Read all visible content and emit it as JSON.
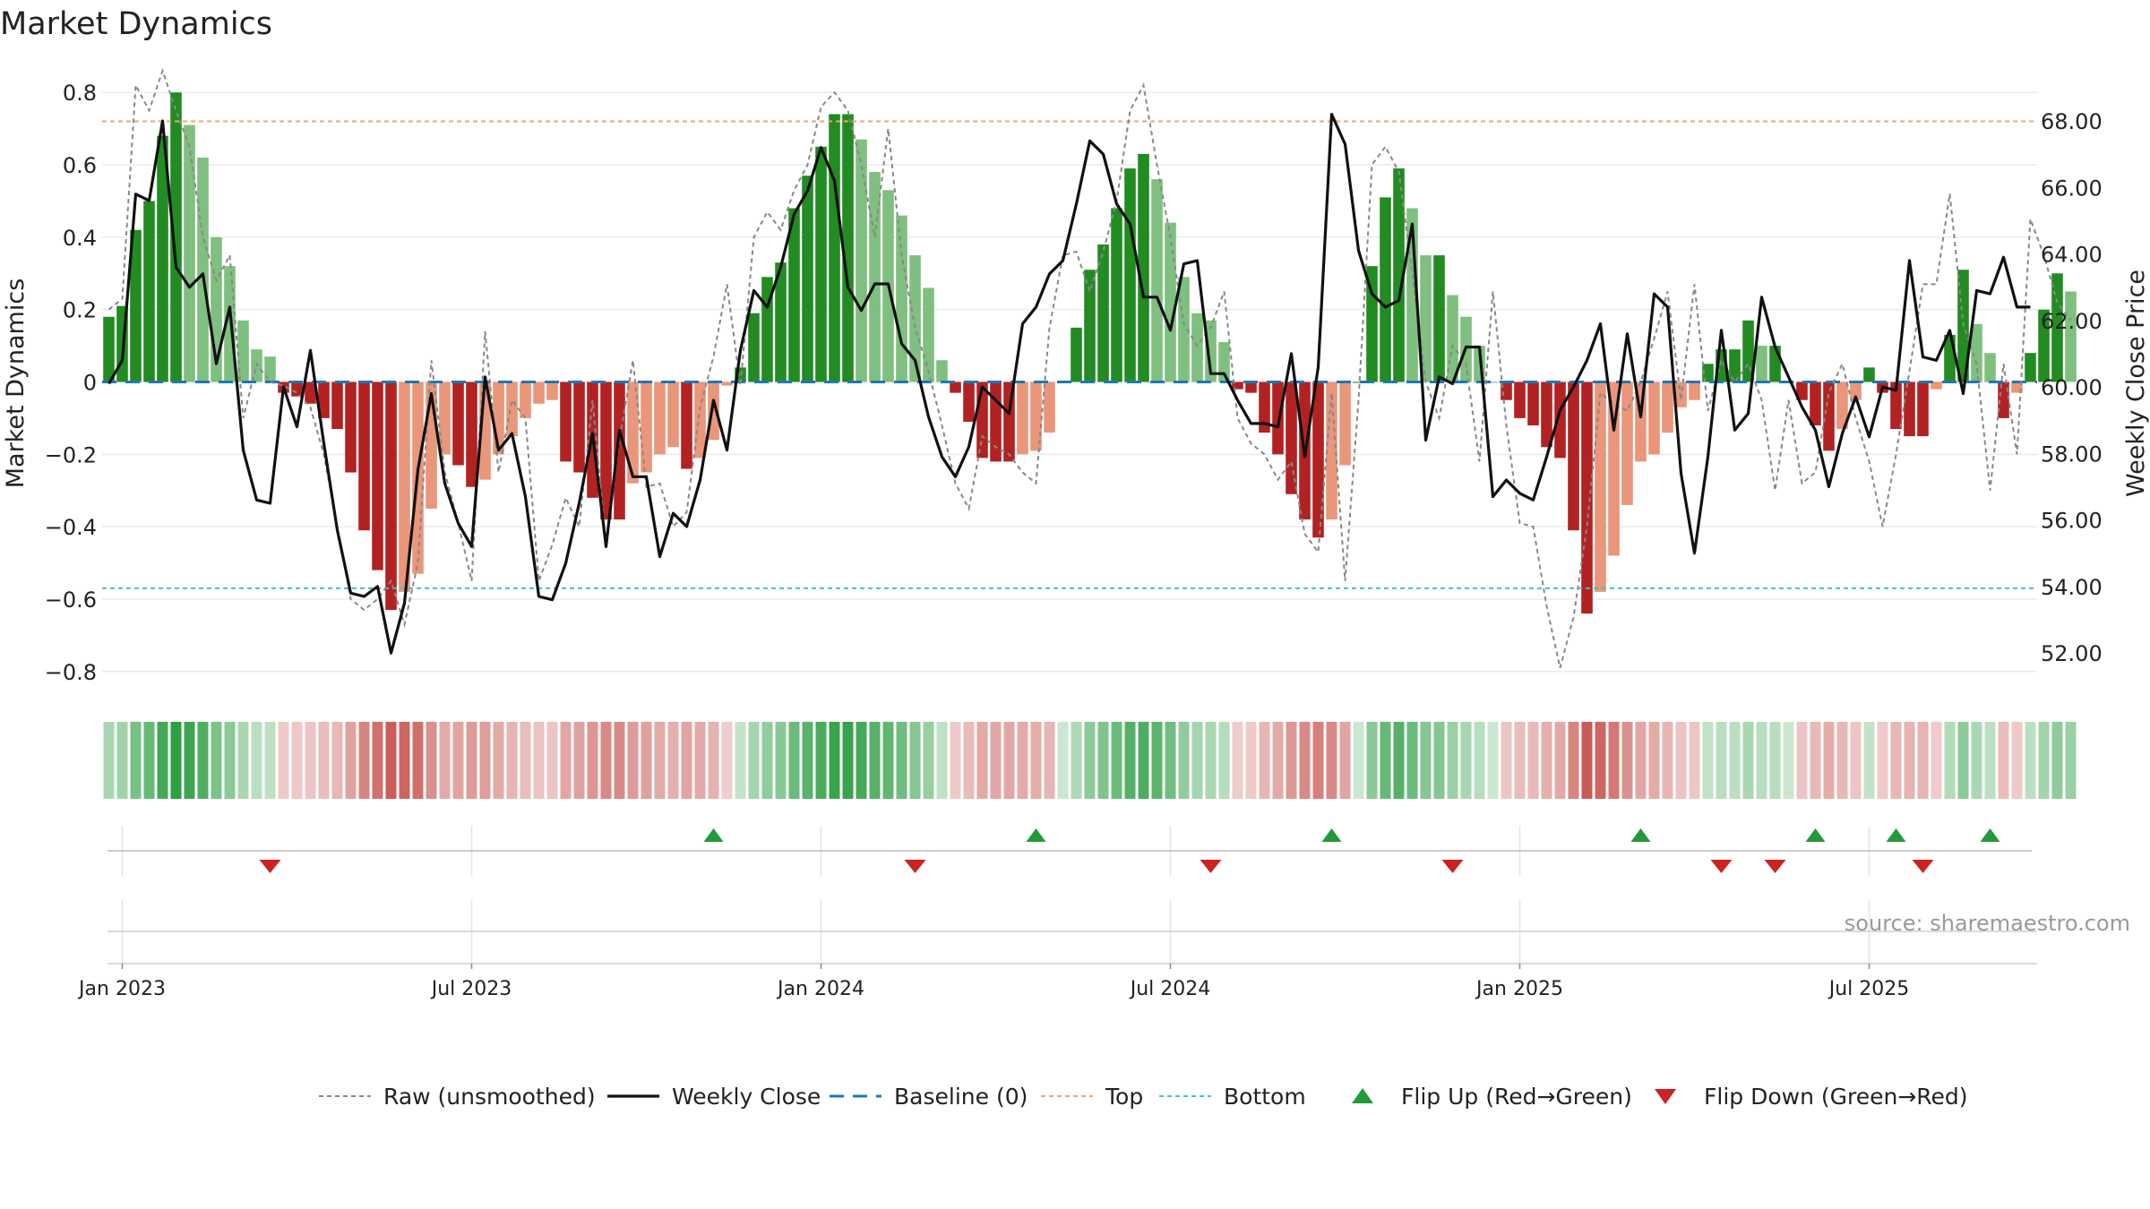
{
  "title": "Market Dynamics",
  "source": "source: sharemaestro.com",
  "colors": {
    "green_strong": "#228B22",
    "green_light": "#7FBF7F",
    "red_strong": "#B22222",
    "red_light": "#E9967A",
    "top_line": "#F4A460",
    "bottom_line": "#40C4C4",
    "baseline": "#1f77b4",
    "close_line": "#111111",
    "raw_line": "#888888",
    "flip_up": "#22993a",
    "flip_down": "#cc2222"
  },
  "legend": [
    {
      "key": "raw",
      "label": "Raw (unsmoothed)"
    },
    {
      "key": "close",
      "label": "Weekly Close"
    },
    {
      "key": "baseline",
      "label": "Baseline (0)"
    },
    {
      "key": "top",
      "label": "Top"
    },
    {
      "key": "bottom",
      "label": "Bottom"
    },
    {
      "key": "flip_up",
      "label": "Flip Up (Red→Green)"
    },
    {
      "key": "flip_down",
      "label": "Flip Down (Green→Red)"
    }
  ],
  "chart_data": {
    "type": "bar",
    "ylabel": "Market Dynamics",
    "y2label": "Weekly Close Price",
    "ylim": [
      -0.85,
      0.85
    ],
    "y2lim": [
      50.9,
      69.4
    ],
    "yticks": [
      {
        "v": 0.8,
        "label": "0.8"
      },
      {
        "v": 0.6,
        "label": "0.6"
      },
      {
        "v": 0.4,
        "label": "0.4"
      },
      {
        "v": 0.2,
        "label": "0.2"
      },
      {
        "v": 0,
        "label": "0"
      },
      {
        "v": -0.2,
        "label": "−0.2"
      },
      {
        "v": -0.4,
        "label": "−0.4"
      },
      {
        "v": -0.6,
        "label": "−0.6"
      },
      {
        "v": -0.8,
        "label": "−0.8"
      }
    ],
    "y2ticks": [
      {
        "v": 68,
        "label": "68.00"
      },
      {
        "v": 66,
        "label": "66.00"
      },
      {
        "v": 64,
        "label": "64.00"
      },
      {
        "v": 62,
        "label": "62.00"
      },
      {
        "v": 60,
        "label": "60.00"
      },
      {
        "v": 58,
        "label": "58.00"
      },
      {
        "v": 56,
        "label": "56.00"
      },
      {
        "v": 54,
        "label": "54.00"
      },
      {
        "v": 52,
        "label": "52.00"
      }
    ],
    "xticks": [
      {
        "week": 1,
        "label": "Jan 2023"
      },
      {
        "week": 27,
        "label": "Jul 2023"
      },
      {
        "week": 53,
        "label": "Jan 2024"
      },
      {
        "week": 79,
        "label": "Jul 2024"
      },
      {
        "week": 105,
        "label": "Jan 2025"
      },
      {
        "week": 131,
        "label": "Jul 2025"
      }
    ],
    "top_level": 0.72,
    "bottom_level": -0.57,
    "baseline": 0,
    "x_weeks_start": -0.5,
    "x_weeks_end": 143.5,
    "dynamics": [
      0.18,
      0.21,
      0.42,
      0.5,
      0.68,
      0.8,
      0.71,
      0.62,
      0.4,
      0.32,
      0.17,
      0.09,
      0.07,
      -0.03,
      -0.04,
      -0.06,
      -0.1,
      -0.13,
      -0.25,
      -0.41,
      -0.52,
      -0.63,
      -0.58,
      -0.53,
      -0.35,
      -0.2,
      -0.23,
      -0.29,
      -0.27,
      -0.2,
      -0.15,
      -0.1,
      -0.06,
      -0.05,
      -0.22,
      -0.25,
      -0.32,
      -0.38,
      -0.38,
      -0.28,
      -0.25,
      -0.2,
      -0.18,
      -0.24,
      -0.21,
      -0.16,
      -0.01,
      0.04,
      0.19,
      0.29,
      0.33,
      0.48,
      0.57,
      0.65,
      0.74,
      0.74,
      0.67,
      0.58,
      0.53,
      0.46,
      0.35,
      0.26,
      0.06,
      -0.03,
      -0.11,
      -0.21,
      -0.22,
      -0.22,
      -0.2,
      -0.19,
      -0.14,
      0.0,
      0.15,
      0.31,
      0.38,
      0.48,
      0.59,
      0.63,
      0.56,
      0.44,
      0.29,
      0.19,
      0.17,
      0.11,
      -0.02,
      -0.03,
      -0.14,
      -0.2,
      -0.31,
      -0.38,
      -0.43,
      -0.38,
      -0.23,
      0.0,
      0.32,
      0.51,
      0.59,
      0.48,
      0.35,
      0.35,
      0.24,
      0.18,
      0.1,
      0.0,
      -0.05,
      -0.1,
      -0.12,
      -0.18,
      -0.21,
      -0.41,
      -0.64,
      -0.58,
      -0.48,
      -0.34,
      -0.22,
      -0.2,
      -0.14,
      -0.07,
      -0.05,
      0.05,
      0.09,
      0.09,
      0.17,
      0.1,
      0.1,
      0.0,
      -0.05,
      -0.12,
      -0.19,
      -0.13,
      -0.05,
      0.04,
      -0.03,
      -0.13,
      -0.15,
      -0.15,
      -0.02,
      0.13,
      0.31,
      0.16,
      0.08,
      -0.1,
      -0.03,
      0.08,
      0.2,
      0.3,
      0.25
    ],
    "raw": [
      0.2,
      0.23,
      0.82,
      0.75,
      0.86,
      0.75,
      0.65,
      0.4,
      0.28,
      0.35,
      -0.1,
      0.05,
      0.0,
      -0.01,
      -0.03,
      -0.07,
      -0.2,
      -0.4,
      -0.6,
      -0.63,
      -0.6,
      -0.55,
      -0.67,
      -0.5,
      0.06,
      -0.25,
      -0.39,
      -0.55,
      0.14,
      -0.25,
      -0.05,
      -0.1,
      -0.55,
      -0.45,
      -0.32,
      -0.4,
      -0.05,
      -0.45,
      -0.16,
      0.06,
      -0.29,
      -0.28,
      -0.4,
      -0.36,
      -0.07,
      0.07,
      0.27,
      -0.01,
      0.4,
      0.47,
      0.42,
      0.53,
      0.6,
      0.76,
      0.8,
      0.75,
      0.6,
      0.4,
      0.7,
      0.35,
      0.15,
      0.03,
      -0.12,
      -0.28,
      -0.35,
      -0.15,
      -0.18,
      -0.2,
      -0.25,
      -0.28,
      0.15,
      0.35,
      0.36,
      0.25,
      0.36,
      0.5,
      0.75,
      0.82,
      0.6,
      0.4,
      0.16,
      0.1,
      0.15,
      0.25,
      -0.1,
      -0.17,
      -0.2,
      -0.27,
      -0.22,
      -0.42,
      -0.47,
      -0.03,
      -0.55,
      -0.05,
      0.6,
      0.65,
      0.58,
      0.3,
      0.0,
      -0.1,
      0.1,
      0.05,
      -0.22,
      0.25,
      -0.12,
      -0.39,
      -0.4,
      -0.62,
      -0.79,
      -0.65,
      -0.4,
      -0.03,
      -0.06,
      -0.08,
      0.0,
      0.12,
      0.25,
      -0.05,
      0.27,
      -0.08,
      0.06,
      0.0,
      0.05,
      -0.05,
      -0.3,
      -0.05,
      -0.28,
      -0.25,
      -0.03,
      0.05,
      -0.1,
      -0.22,
      -0.4,
      -0.2,
      0.03,
      0.27,
      0.27,
      0.52,
      0.16,
      0.05,
      -0.3,
      0.05,
      -0.2,
      0.45,
      0.35,
      0.22,
      0.17
    ],
    "weekly_close": [
      60.1,
      60.8,
      65.8,
      65.6,
      68.0,
      63.6,
      63.0,
      63.4,
      60.7,
      62.4,
      58.1,
      56.6,
      56.5,
      60.0,
      58.8,
      61.1,
      58.3,
      55.7,
      53.8,
      53.7,
      54.0,
      52.0,
      53.5,
      57.5,
      59.8,
      57.1,
      55.9,
      55.2,
      60.3,
      58.1,
      58.6,
      56.7,
      53.7,
      53.6,
      54.7,
      56.5,
      58.6,
      55.2,
      58.7,
      57.3,
      57.3,
      54.9,
      56.2,
      55.8,
      57.2,
      59.6,
      58.1,
      61.1,
      62.9,
      62.4,
      63.6,
      65.2,
      65.9,
      67.2,
      66.2,
      63.0,
      62.3,
      63.1,
      63.1,
      61.3,
      60.8,
      59.1,
      57.9,
      57.3,
      58.2,
      60.0,
      59.6,
      59.2,
      61.9,
      62.4,
      63.4,
      63.8,
      65.5,
      67.4,
      67.0,
      65.5,
      64.9,
      62.7,
      62.7,
      61.7,
      63.7,
      63.8,
      60.4,
      60.4,
      59.6,
      58.9,
      58.9,
      58.8,
      61.0,
      57.9,
      60.6,
      68.2,
      67.3,
      64.1,
      62.8,
      62.4,
      62.6,
      64.9,
      58.4,
      60.3,
      60.1,
      61.2,
      61.2,
      56.7,
      57.2,
      56.8,
      56.6,
      57.9,
      59.3,
      60.0,
      60.8,
      61.9,
      58.7,
      61.6,
      59.1,
      62.8,
      62.4,
      57.4,
      55.0,
      57.9,
      61.7,
      58.7,
      59.2,
      62.7,
      61.2,
      60.3,
      59.4,
      58.7,
      57.0,
      58.6,
      59.7,
      58.5,
      60.0,
      59.9,
      63.8,
      60.9,
      60.8,
      61.7,
      59.8,
      62.9,
      62.8,
      63.9,
      62.4,
      62.4
    ],
    "flip_up_weeks": [
      45,
      69,
      91,
      114,
      127,
      133,
      140
    ],
    "flip_down_weeks": [
      12,
      60,
      82,
      100,
      120,
      124,
      135
    ]
  }
}
